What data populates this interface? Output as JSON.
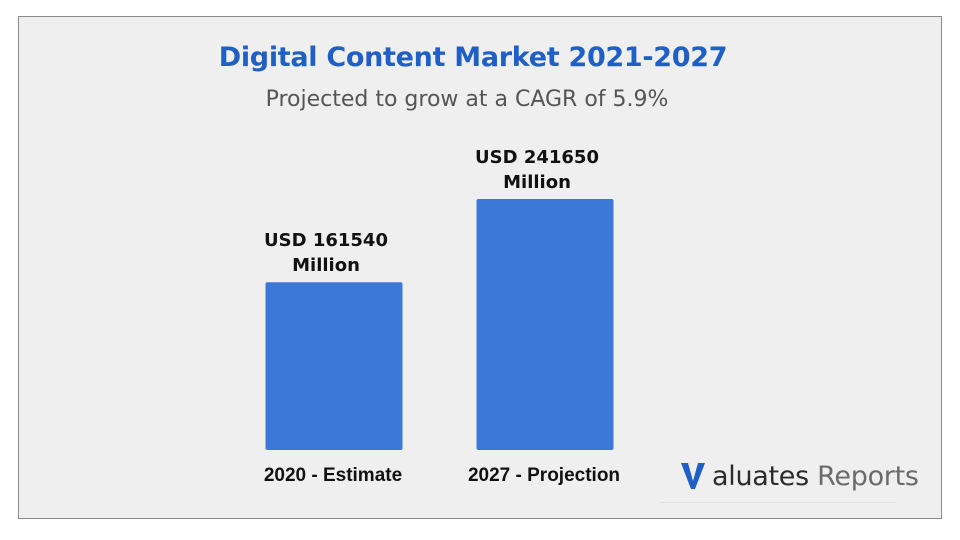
{
  "header": {
    "title": "Digital Content Market 2021-2027",
    "subtitle": "Projected to grow at a CAGR of 5.9%"
  },
  "chart_data": {
    "type": "bar",
    "categories": [
      "2020 - Estimate",
      "2027 - Projection"
    ],
    "values": [
      161540,
      241650
    ],
    "data_labels": [
      [
        "USD 161540",
        "Million"
      ],
      [
        "USD 241650",
        "Million"
      ]
    ],
    "unit": "USD Million",
    "title": "Digital Content Market 2021-2027",
    "subtitle": "Projected to grow at a CAGR of 5.9%",
    "bar_color": "#3c78d8",
    "grid": false,
    "legend": "none"
  },
  "logo": {
    "mark": "V",
    "word": "aluates",
    "suffix": "Reports",
    "color": "#1f5fc6"
  }
}
